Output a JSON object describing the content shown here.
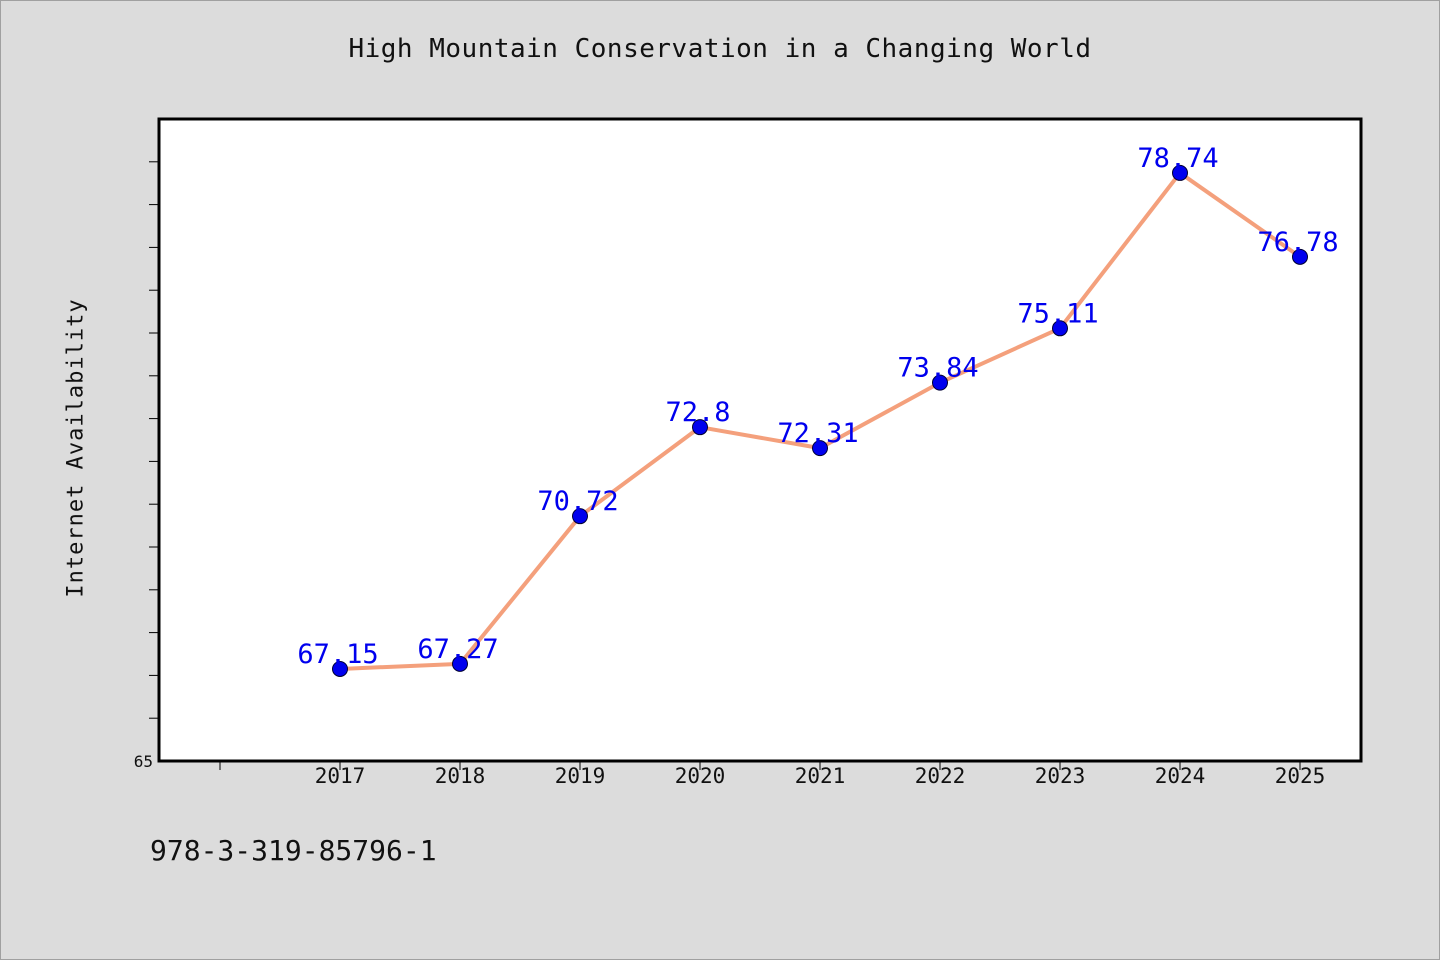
{
  "chart_data": {
    "type": "line",
    "title": "High Mountain Conservation in a Changing World",
    "xlabel": "",
    "ylabel": "Internet Availability",
    "categories": [
      "2017",
      "2018",
      "2019",
      "2020",
      "2021",
      "2022",
      "2023",
      "2024",
      "2025"
    ],
    "series": [
      {
        "values": [
          67.15,
          67.27,
          70.72,
          72.8,
          72.31,
          73.84,
          75.11,
          78.74,
          76.78
        ]
      }
    ],
    "value_labels": [
      "67.15",
      "67.27",
      "70.72",
      "72.8",
      "72.31",
      "73.84",
      "75.11",
      "78.74",
      "76.78"
    ],
    "ylim": [
      65,
      80
    ],
    "y_tick_labels": [
      "65"
    ],
    "grid": false,
    "colors": {
      "line": "#f4a07c",
      "marker": "#0000ee",
      "label": "#0000ee",
      "background": "#dcdcdc",
      "plot_background": "#ffffff"
    }
  },
  "footer": {
    "isbn": "978-3-319-85796-1"
  }
}
